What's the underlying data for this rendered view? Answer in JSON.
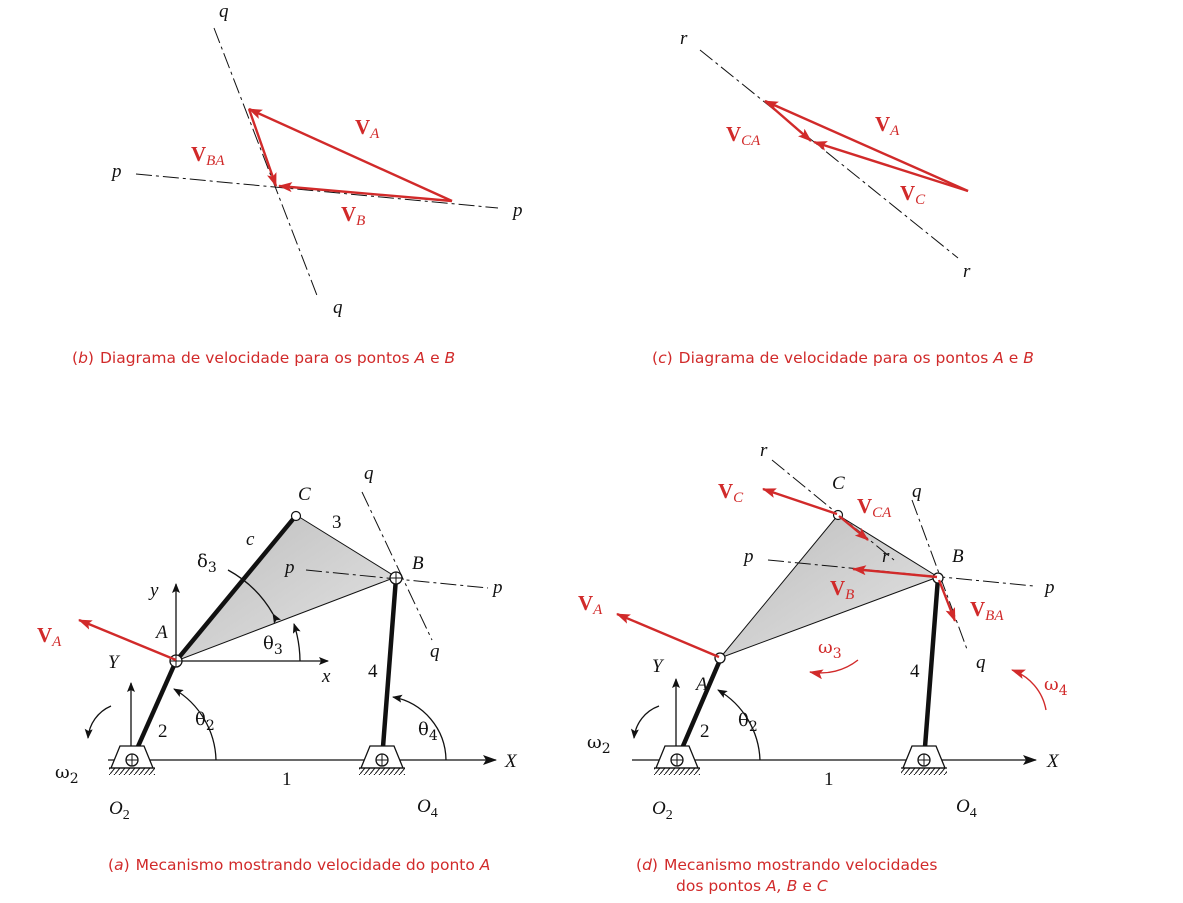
{
  "captions": {
    "b_letter": "b",
    "b_text": "Diagrama de velocidade para os pontos ",
    "b_p1": "A",
    "b_e": " e ",
    "b_p2": "B",
    "c_letter": "c",
    "c_text": "Diagrama de velocidade para os pontos ",
    "c_p1": "A",
    "c_e": " e ",
    "c_p2": "B",
    "a_letter": "a",
    "a_text": "Mecanismo mostrando velocidade do ponto ",
    "a_p1": "A",
    "d_letter": "d",
    "d_text1": "Mecanismo mostrando velocidades",
    "d_text2": "dos pontos ",
    "d_p1": "A, B",
    "d_e": " e ",
    "d_p2": "C"
  },
  "labels": {
    "p": "p",
    "q": "q",
    "r": "r",
    "A": "A",
    "B": "B",
    "C": "C",
    "c": "c",
    "x": "x",
    "y": "y",
    "X": "X",
    "Y": "Y",
    "O": "O",
    "sub2": "2",
    "sub3": "3",
    "sub4": "4",
    "one": "1",
    "two": "2",
    "three": "3",
    "four": "4",
    "theta": "θ",
    "delta": "δ",
    "omega": "ω"
  },
  "vectors": {
    "V": "V",
    "A": "A",
    "B": "B",
    "C": "C",
    "BA": "BA",
    "CA": "CA"
  },
  "colors": {
    "vector": "#d12a2a",
    "line": "#111111",
    "link3_fill": "#cfcfcf"
  }
}
